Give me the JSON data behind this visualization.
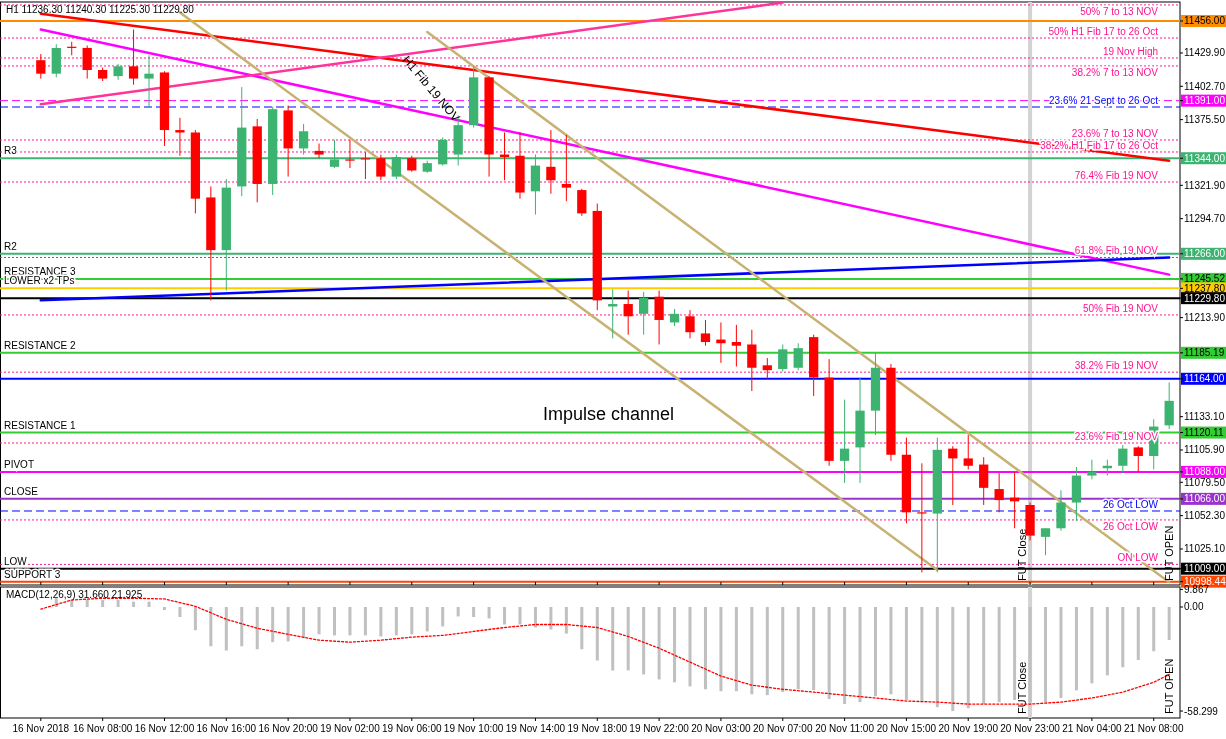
{
  "chart_data": [
    {
      "type": "candlestick",
      "title": "H1  11236.30 11240.30 11225.30 11229.80",
      "categories": [
        "16 Nov 2018",
        null,
        null,
        null,
        "16 Nov 08:00",
        null,
        null,
        null,
        "16 Nov 12:00",
        null,
        null,
        null,
        "16 Nov 16:00",
        null,
        null,
        null,
        "16 Nov 20:00",
        null,
        null,
        null,
        "19 Nov 02:00",
        null,
        null,
        null,
        "19 Nov 06:00",
        null,
        null,
        null,
        "19 Nov 10:00",
        null,
        null,
        null,
        "19 Nov 14:00",
        null,
        null,
        null,
        "19 Nov 18:00",
        null,
        null,
        null,
        "19 Nov 22:00",
        null,
        null,
        null,
        "20 Nov 03:00",
        null,
        null,
        null,
        "20 Nov 07:00",
        null,
        null,
        null,
        "20 Nov 11:00",
        null,
        null,
        null,
        "20 Nov 15:00",
        null,
        null,
        null,
        "20 Nov 19:00",
        null,
        null,
        null,
        "20 Nov 23:00",
        null,
        null,
        null,
        "21 Nov 04:00",
        null,
        null,
        null,
        "21 Nov 08:00",
        null
      ],
      "ohlc": [
        [
          11424,
          11429,
          11409,
          11413
        ],
        [
          11413,
          11437,
          11410,
          11434
        ],
        [
          11435,
          11439,
          11428,
          11434
        ],
        [
          11434,
          11436,
          11409,
          11416
        ],
        [
          11416,
          11418,
          11407,
          11409
        ],
        [
          11411,
          11421,
          11408,
          11419
        ],
        [
          11419,
          11449,
          11404,
          11409
        ],
        [
          11409,
          11428,
          11386,
          11413
        ],
        [
          11414,
          11415,
          11354,
          11367
        ],
        [
          11367,
          11377,
          11346,
          11365
        ],
        [
          11365,
          11367,
          11299,
          11311
        ],
        [
          11312,
          11321,
          11228,
          11269
        ],
        [
          11269,
          11327,
          11236,
          11320
        ],
        [
          11321,
          11402,
          11313,
          11369
        ],
        [
          11370,
          11376,
          11308,
          11323
        ],
        [
          11323,
          11386,
          11314,
          11384
        ],
        [
          11383,
          11387,
          11329,
          11352
        ],
        [
          11352,
          11372,
          11347,
          11366
        ],
        [
          11350,
          11356,
          11344,
          11347
        ],
        [
          11337,
          11359,
          11336,
          11343
        ],
        [
          11343,
          11359,
          11336,
          11342
        ],
        [
          11344,
          11349,
          11327,
          11343
        ],
        [
          11344,
          11347,
          11326,
          11329
        ],
        [
          11329,
          11347,
          11327,
          11345
        ],
        [
          11344,
          11346,
          11333,
          11334
        ],
        [
          11333,
          11342,
          11332,
          11340
        ],
        [
          11339,
          11361,
          11338,
          11359
        ],
        [
          11347,
          11379,
          11338,
          11371
        ],
        [
          11371,
          11419,
          11369,
          11410
        ],
        [
          11410,
          11411,
          11329,
          11347
        ],
        [
          11347,
          11365,
          11326,
          11345
        ],
        [
          11346,
          11365,
          11311,
          11316
        ],
        [
          11317,
          11347,
          11298,
          11338
        ],
        [
          11337,
          11367,
          11315,
          11326
        ],
        [
          11323,
          11363,
          11309,
          11320
        ],
        [
          11318,
          11319,
          11297,
          11299
        ],
        [
          11301,
          11307,
          11220,
          11228
        ],
        [
          11223,
          11237,
          11197,
          11225
        ],
        [
          11225,
          11236,
          11200,
          11215
        ],
        [
          11217,
          11235,
          11200,
          11230
        ],
        [
          11231,
          11236,
          11192,
          11212
        ],
        [
          11210,
          11221,
          11207,
          11217
        ],
        [
          11215,
          11220,
          11197,
          11202
        ],
        [
          11201,
          11212,
          11191,
          11194
        ],
        [
          11196,
          11210,
          11177,
          11193
        ],
        [
          11194,
          11208,
          11174,
          11191
        ],
        [
          11192,
          11204,
          11154,
          11173
        ],
        [
          11175,
          11181,
          11164,
          11171
        ],
        [
          11172,
          11192,
          11170,
          11188
        ],
        [
          11173,
          11193,
          11171,
          11189
        ],
        [
          11198,
          11200,
          11150,
          11165
        ],
        [
          11165,
          11180,
          11093,
          11097
        ],
        [
          11097,
          11147,
          11079,
          11107
        ],
        [
          11108,
          11165,
          11079,
          11138
        ],
        [
          11138,
          11185,
          11118,
          11173
        ],
        [
          11173,
          11176,
          11097,
          11102
        ],
        [
          11102,
          11116,
          11046,
          11055
        ],
        [
          11055,
          11095,
          11006,
          11054
        ],
        [
          11054,
          11116,
          11006,
          11106
        ],
        [
          11107,
          11109,
          11061,
          11099
        ],
        [
          11099,
          11118,
          11090,
          11093
        ],
        [
          11094,
          11100,
          11061,
          11075
        ],
        [
          11074,
          11087,
          11055,
          11065
        ],
        [
          11067,
          11088,
          11042,
          11064
        ],
        [
          11061,
          11063,
          11032,
          11036
        ],
        [
          11035,
          11042,
          11020,
          11042
        ],
        [
          11042,
          11073,
          11040,
          11063
        ],
        [
          11063,
          11092,
          11048,
          11085
        ],
        [
          11085,
          11098,
          11082,
          11088
        ],
        [
          11091,
          11098,
          11085,
          11093
        ],
        [
          11093,
          11110,
          11087,
          11107
        ],
        [
          11108,
          11109,
          11088,
          11101
        ],
        [
          11101,
          11131,
          11090,
          11125
        ],
        [
          11126,
          11161,
          11123,
          11146
        ]
      ],
      "series": [
        {
          "type": "line",
          "color": "#ff0000",
          "values": [
            11462,
            null,
            null,
            null,
            null,
            null,
            null,
            null,
            null,
            null,
            null,
            null,
            null,
            null,
            null,
            null,
            null,
            null,
            null,
            null,
            null,
            null,
            null,
            null,
            null,
            null,
            null,
            null,
            null,
            null,
            null,
            null,
            null,
            null,
            null,
            null,
            null,
            null,
            null,
            null,
            null,
            null,
            null,
            null,
            null,
            null,
            null,
            null,
            null,
            null,
            null,
            null,
            null,
            null,
            null,
            null,
            null,
            null,
            null,
            null,
            null,
            null,
            null,
            null,
            null,
            null,
            null,
            null,
            null,
            null,
            null,
            null,
            null,
            11342
          ]
        },
        {
          "type": "line",
          "color": "#ff00ff",
          "values": [
            11449,
            null,
            null,
            null,
            null,
            null,
            null,
            null,
            null,
            null,
            null,
            null,
            null,
            null,
            null,
            null,
            null,
            null,
            null,
            null,
            null,
            null,
            null,
            null,
            null,
            null,
            null,
            null,
            null,
            null,
            null,
            null,
            null,
            null,
            null,
            null,
            null,
            null,
            null,
            null,
            null,
            null,
            null,
            null,
            null,
            null,
            null,
            null,
            null,
            null,
            null,
            null,
            null,
            null,
            null,
            null,
            null,
            null,
            null,
            null,
            null,
            null,
            null,
            null,
            null,
            null,
            null,
            null,
            null,
            null,
            null,
            null,
            null,
            11249
          ]
        },
        {
          "type": "line",
          "color": "#ff3399",
          "values": [
            11388,
            null,
            null,
            null,
            null,
            null,
            null,
            null,
            null,
            null,
            null,
            null,
            null,
            null,
            null,
            null,
            null,
            null,
            null,
            null,
            null,
            null,
            null,
            null,
            null,
            null,
            null,
            null,
            null,
            null,
            null,
            null,
            null,
            null,
            null,
            null,
            null,
            null,
            null,
            null,
            null,
            null,
            null,
            null,
            null,
            null,
            null,
            null,
            11471,
            null,
            null,
            null,
            null,
            null,
            null,
            null,
            null,
            null,
            null,
            null,
            null,
            null,
            null,
            null,
            null,
            null,
            null,
            null,
            null,
            null,
            null,
            null,
            null,
            null
          ]
        },
        {
          "type": "line",
          "color": "#0000ff",
          "values": [
            11228,
            null,
            null,
            null,
            null,
            null,
            null,
            null,
            null,
            null,
            null,
            null,
            null,
            null,
            null,
            null,
            null,
            null,
            null,
            null,
            null,
            null,
            null,
            null,
            null,
            null,
            null,
            null,
            null,
            null,
            null,
            null,
            null,
            null,
            null,
            null,
            null,
            null,
            null,
            null,
            null,
            null,
            null,
            null,
            null,
            null,
            null,
            null,
            null,
            null,
            null,
            null,
            null,
            null,
            null,
            null,
            null,
            null,
            null,
            null,
            null,
            null,
            null,
            null,
            null,
            null,
            null,
            null,
            null,
            null,
            null,
            null,
            null,
            11263
          ]
        },
        {
          "type": "line",
          "color": "#c8b273",
          "values": [
            null,
            null,
            null,
            null,
            null,
            null,
            null,
            null,
            null,
            null,
            null,
            null,
            null,
            null,
            null,
            null,
            null,
            null,
            null,
            null,
            null,
            null,
            null,
            null,
            null,
            11447,
            null,
            null,
            null,
            null,
            null,
            null,
            null,
            null,
            null,
            null,
            null,
            null,
            null,
            null,
            null,
            null,
            null,
            null,
            null,
            null,
            null,
            null,
            null,
            null,
            null,
            null,
            null,
            null,
            null,
            null,
            null,
            null,
            null,
            null,
            null,
            null,
            null,
            null,
            null,
            null,
            null,
            null,
            null,
            null,
            null,
            null,
            null,
            10998
          ]
        },
        {
          "type": "line",
          "color": "#c8b273",
          "values": [
            null,
            null,
            null,
            null,
            null,
            null,
            null,
            null,
            null,
            11463,
            null,
            null,
            null,
            null,
            null,
            null,
            null,
            null,
            null,
            null,
            null,
            null,
            null,
            null,
            null,
            null,
            null,
            null,
            null,
            null,
            null,
            null,
            null,
            null,
            null,
            null,
            null,
            null,
            null,
            null,
            null,
            null,
            null,
            null,
            null,
            null,
            null,
            null,
            null,
            null,
            null,
            null,
            null,
            null,
            null,
            null,
            null,
            null,
            11008,
            null,
            null,
            null,
            null,
            null,
            null,
            null,
            null,
            null,
            null,
            null,
            null,
            null,
            null,
            null
          ]
        }
      ],
      "ylim": [
        10995.7,
        11471.5
      ],
      "yticks": [
        {
          "value": 11456.0,
          "label": "11456.00"
        },
        {
          "value": 11391.0,
          "label": "11391.00"
        },
        {
          "value": 11344.0,
          "label": "11344.00"
        },
        {
          "value": 11266.0,
          "label": "11266.00"
        },
        {
          "value": 11245.52,
          "label": "11245.52"
        },
        {
          "value": 11237.8,
          "label": "11237.80"
        },
        {
          "value": 11229.8,
          "label": "11229.80"
        },
        {
          "value": 11185.19,
          "label": "11185.19"
        },
        {
          "value": 11164.0,
          "label": "11164.00"
        },
        {
          "value": 11120.11,
          "label": "11120.11"
        },
        {
          "value": 11088.0,
          "label": "11088.00"
        },
        {
          "value": 11066.0,
          "label": "11066.00"
        },
        {
          "value": 11009.0,
          "label": "11009.00"
        },
        {
          "value": 10998.44,
          "label": "10998.44"
        },
        {
          "value": 11429.9,
          "label": "11429.90"
        },
        {
          "value": 11402.7,
          "label": "11402.70"
        },
        {
          "value": 11375.5,
          "label": "11375.50"
        },
        {
          "value": 11321.9,
          "label": "11321.90"
        },
        {
          "value": 11294.7,
          "label": "11294.70"
        },
        {
          "value": 11213.9,
          "label": "11213.90"
        },
        {
          "value": 11133.1,
          "label": "11133.10"
        },
        {
          "value": 11105.9,
          "label": "11105.90"
        },
        {
          "value": 11079.5,
          "label": "11079.50"
        },
        {
          "value": 11052.3,
          "label": "11052.30"
        },
        {
          "value": 11025.1,
          "label": "11025.10"
        }
      ],
      "tick_labels": "y",
      "ref_lines": [
        {
          "axis": "y",
          "value": 11456.0,
          "color": "#ff8c00",
          "line_style": "solid"
        },
        {
          "axis": "y",
          "value": 11391.0,
          "color": "#ff00ff",
          "line_style": "dashed"
        },
        {
          "axis": "y",
          "value": 11344.0,
          "label": "R3",
          "color": "#3cb371",
          "line_style": "solid"
        },
        {
          "axis": "y",
          "value": 11266.0,
          "label": "R2",
          "color": "#3cb371",
          "line_style": "solid"
        },
        {
          "axis": "y",
          "value": 11245.52,
          "label": "RESISTANCE 3",
          "color": "#33cc33",
          "line_style": "solid"
        },
        {
          "axis": "y",
          "value": 11237.8,
          "label": "LOWER x2 TPs",
          "color": "#ffcc00",
          "line_style": "solid"
        },
        {
          "axis": "y",
          "value": 11229.8,
          "color": "#000000",
          "line_style": "solid"
        },
        {
          "axis": "y",
          "value": 11185.19,
          "label": "RESISTANCE 2",
          "color": "#33cc33",
          "line_style": "solid"
        },
        {
          "axis": "y",
          "value": 11164.0,
          "color": "#0000ff",
          "line_style": "solid"
        },
        {
          "axis": "y",
          "value": 11120.11,
          "label": "RESISTANCE 1",
          "color": "#33cc33",
          "line_style": "solid"
        },
        {
          "axis": "y",
          "value": 11088.0,
          "label": "PIVOT",
          "color": "#ff00ff",
          "line_style": "solid"
        },
        {
          "axis": "y",
          "value": 11066.0,
          "label": "CLOSE",
          "color": "#9933cc",
          "line_style": "solid"
        },
        {
          "axis": "y",
          "value": 11009.0,
          "label": "LOW",
          "color": "#000000",
          "line_style": "solid"
        },
        {
          "axis": "y",
          "value": 10998.44,
          "label": "SUPPORT 3",
          "color": "#ff4500",
          "line_style": "solid"
        },
        {
          "axis": "y",
          "value": 11469.1,
          "label": "50%  7 to 13 NOV",
          "color": "#ff1493",
          "line_style": "dotted"
        },
        {
          "axis": "y",
          "value": 11442.1,
          "label": "50%  H1 Fib 17 to 26 Oct",
          "color": "#ff1493",
          "line_style": "dotted"
        },
        {
          "axis": "y",
          "value": 11425.8,
          "label": "19 Nov High",
          "color": "#ff1493",
          "line_style": "dotted"
        },
        {
          "axis": "y",
          "value": 11419.3,
          "label": "38.2%  7 to 13 NOV",
          "color": "#ff1493",
          "line_style": "dotted"
        },
        {
          "axis": "y",
          "value": 11385.8,
          "label": "23.6%  21 Sept to 26 Oct",
          "color": "#0000ff",
          "line_style": "dashed"
        },
        {
          "axis": "y",
          "value": 11358.9,
          "label": "23.6%  7 to 13 NOV",
          "color": "#ff1493",
          "line_style": "dotted"
        },
        {
          "axis": "y",
          "value": 11349.1,
          "label": "38.2%  H1 Fib 17 to 26 Oct",
          "color": "#ff1493",
          "line_style": "dotted"
        },
        {
          "axis": "y",
          "value": 11324.6,
          "label": "76.4%  Fib 19 NOV",
          "color": "#ff1493",
          "line_style": "dotted"
        },
        {
          "axis": "y",
          "value": 11263,
          "label": "61.8%  Fib 19 NOV",
          "color": "#ff1493",
          "line_style": "dotted"
        },
        {
          "axis": "y",
          "value": 11216.1,
          "label": "50%  Fib 19 NOV",
          "color": "#ff1493",
          "line_style": "dotted"
        },
        {
          "axis": "y",
          "value": 11169.4,
          "label": "38.2%  Fib 19 NOV",
          "color": "#ff1493",
          "line_style": "dotted"
        },
        {
          "axis": "y",
          "value": 11111.6,
          "label": "23.6%  Fib 19 NOV",
          "color": "#ff1493",
          "line_style": "dotted"
        },
        {
          "axis": "y",
          "value": 11056.1,
          "label": "26 Oct LOW",
          "color": "#0000ff",
          "line_style": "dashed"
        },
        {
          "axis": "y",
          "value": 11048.8,
          "label": "26 Oct LOW",
          "color": "#ff1493",
          "line_style": "dotted"
        },
        {
          "axis": "y",
          "value": 11012.5,
          "label": "ON LOW",
          "color": "#ff1493",
          "line_style": "dotted"
        },
        {
          "axis": "x",
          "value": "20 Nov 23:00",
          "label": "FUT Close",
          "color": "#d3d3d3"
        }
      ],
      "annotations": [
        "Impulse channel",
        "H1  Fib 19 NOV",
        "FUT OPEN"
      ]
    },
    {
      "type": "bar",
      "title": "MACD(12,26,9) 31.660 21.925",
      "categories": [
        "16 Nov 2018",
        null,
        null,
        null,
        "16 Nov 08:00",
        null,
        null,
        null,
        "16 Nov 12:00",
        null,
        null,
        null,
        "16 Nov 16:00",
        null,
        null,
        null,
        "16 Nov 20:00",
        null,
        null,
        null,
        "19 Nov 02:00",
        null,
        null,
        null,
        "19 Nov 06:00",
        null,
        null,
        null,
        "19 Nov 10:00",
        null,
        null,
        null,
        "19 Nov 14:00",
        null,
        null,
        null,
        "19 Nov 18:00",
        null,
        null,
        null,
        "19 Nov 22:00",
        null,
        null,
        null,
        "20 Nov 03:00",
        null,
        null,
        null,
        "20 Nov 07:00",
        null,
        null,
        null,
        "20 Nov 11:00",
        null,
        null,
        null,
        "20 Nov 15:00",
        null,
        null,
        null,
        "20 Nov 19:00",
        null,
        null,
        null,
        "20 Nov 23:00",
        null,
        null,
        null,
        "21 Nov 04:00",
        null,
        null,
        null,
        "21 Nov 08:00",
        null
      ],
      "series": [
        {
          "type": "bar",
          "color": "#c0c0c0",
          "values": [
            null,
            5,
            4,
            4,
            4,
            4,
            3,
            3,
            -1.7,
            -5.6,
            -13,
            -22,
            -24.4,
            -22,
            -23.7,
            -19.7,
            -19.3,
            -17.5,
            -15.3,
            -15.9,
            -15.9,
            -15.9,
            -16.5,
            -15.9,
            -15.3,
            -13.7,
            -10.9,
            -5.3,
            -5.6,
            -6.4,
            -9.8,
            -9.8,
            -11.5,
            -12.6,
            -14.9,
            -23.7,
            -30,
            -35.6,
            -35.5,
            -37.8,
            -40.6,
            -42.2,
            -44.5,
            -46.1,
            -47.2,
            -47.2,
            -48.9,
            -49.4,
            -47.7,
            -46.1,
            -46.7,
            -51.6,
            -54.4,
            -53.3,
            -50,
            -48.9,
            -52.1,
            -53.3,
            -56.1,
            -58.3,
            -56.7,
            -54.4,
            -53.3,
            -52.1,
            -53.3,
            -53.3,
            -51,
            -46.7,
            -42.8,
            -38.3,
            -33.8,
            -29.7,
            -24.8,
            -18.5
          ]
        },
        {
          "type": "line",
          "color": "#ff0000",
          "line_style": "dotted",
          "values": [
            -1.2,
            null,
            3.9,
            null,
            4.9,
            null,
            4.9,
            null,
            4.5,
            null,
            0.4,
            null,
            -6.9,
            null,
            -11.9,
            null,
            -15.3,
            null,
            -18.6,
            null,
            -19.7,
            null,
            -18.6,
            null,
            -16.9,
            null,
            -15.9,
            null,
            -13.7,
            null,
            -11.5,
            null,
            -9.8,
            null,
            -9.8,
            null,
            -11.5,
            null,
            -16.5,
            null,
            -23.1,
            null,
            -30.9,
            null,
            -38.7,
            null,
            -43.8,
            null,
            -46.1,
            null,
            -47.7,
            null,
            -49.4,
            null,
            -51,
            null,
            -52.7,
            null,
            -53.3,
            null,
            -54.4,
            null,
            -54.4,
            null,
            -54.4,
            null,
            -53.3,
            null,
            -51,
            null,
            -47.7,
            null,
            -42.2,
            -37.8
          ]
        }
      ],
      "ylim": [
        -62.2,
        11.2
      ],
      "yticks": [
        9.867,
        {
          "value": 0,
          "label": "0.00"
        },
        -58.299
      ],
      "ref_lines": [
        {
          "axis": "x",
          "value": "20 Nov 23:00",
          "label": "FUT Close",
          "color": "#d3d3d3"
        }
      ],
      "annotations": [
        "FUT OPEN"
      ]
    }
  ]
}
